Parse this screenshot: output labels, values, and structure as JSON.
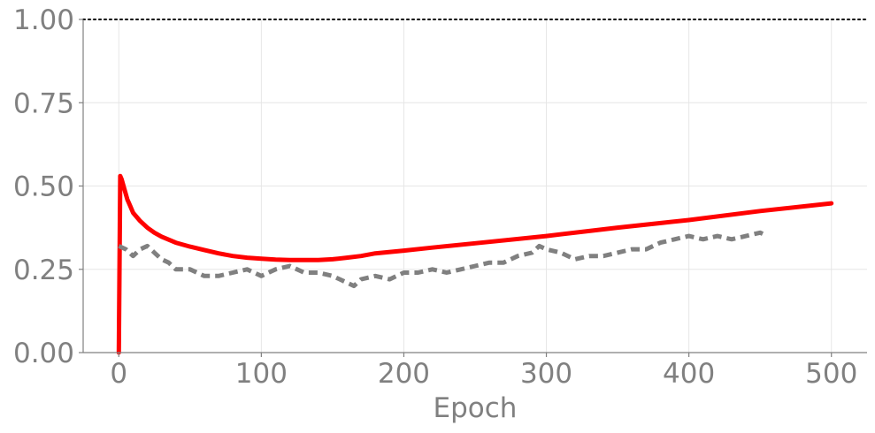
{
  "chart_data": {
    "type": "line",
    "title": "",
    "xlabel": "Epoch",
    "ylabel": "",
    "xlim": [
      -25,
      525
    ],
    "ylim": [
      0,
      1
    ],
    "x_ticks": [
      0,
      100,
      200,
      300,
      400,
      500
    ],
    "x_tick_labels": [
      "0",
      "100",
      "200",
      "300",
      "400",
      "500"
    ],
    "y_ticks": [
      0,
      0.25,
      0.5,
      0.75,
      1.0
    ],
    "y_tick_labels": [
      "0.00",
      "0.25",
      "0.50",
      "0.75",
      "1.00"
    ],
    "grid": true,
    "reference_line": {
      "y": 1.0,
      "style": "dotted",
      "color": "#000000"
    },
    "series": [
      {
        "style": "solid",
        "color": "#ff0000",
        "x": [
          0,
          1,
          2,
          4,
          6,
          8,
          10,
          15,
          20,
          25,
          30,
          40,
          50,
          60,
          70,
          80,
          90,
          100,
          110,
          120,
          130,
          140,
          150,
          160,
          170,
          180,
          200,
          220,
          250,
          300,
          350,
          400,
          450,
          500
        ],
        "y": [
          0.0,
          0.53,
          0.52,
          0.49,
          0.46,
          0.44,
          0.42,
          0.395,
          0.375,
          0.36,
          0.348,
          0.33,
          0.318,
          0.308,
          0.298,
          0.29,
          0.285,
          0.282,
          0.279,
          0.278,
          0.278,
          0.278,
          0.28,
          0.285,
          0.29,
          0.298,
          0.306,
          0.315,
          0.328,
          0.35,
          0.375,
          0.398,
          0.425,
          0.448
        ]
      },
      {
        "style": "dashed",
        "color": "#808080",
        "x": [
          0,
          5,
          10,
          15,
          20,
          25,
          30,
          35,
          40,
          50,
          60,
          70,
          80,
          90,
          100,
          110,
          120,
          130,
          140,
          150,
          160,
          165,
          170,
          180,
          190,
          200,
          210,
          220,
          230,
          240,
          250,
          260,
          270,
          280,
          290,
          295,
          300,
          310,
          320,
          330,
          340,
          350,
          360,
          370,
          380,
          390,
          400,
          410,
          420,
          430,
          440,
          450,
          455
        ],
        "y": [
          0.32,
          0.31,
          0.29,
          0.31,
          0.32,
          0.3,
          0.28,
          0.27,
          0.25,
          0.25,
          0.23,
          0.23,
          0.24,
          0.25,
          0.23,
          0.25,
          0.26,
          0.24,
          0.24,
          0.23,
          0.21,
          0.2,
          0.22,
          0.23,
          0.22,
          0.24,
          0.24,
          0.25,
          0.24,
          0.25,
          0.26,
          0.27,
          0.27,
          0.29,
          0.3,
          0.32,
          0.31,
          0.3,
          0.28,
          0.29,
          0.29,
          0.3,
          0.31,
          0.31,
          0.33,
          0.34,
          0.35,
          0.34,
          0.35,
          0.34,
          0.35,
          0.36,
          0.35
        ]
      }
    ]
  }
}
